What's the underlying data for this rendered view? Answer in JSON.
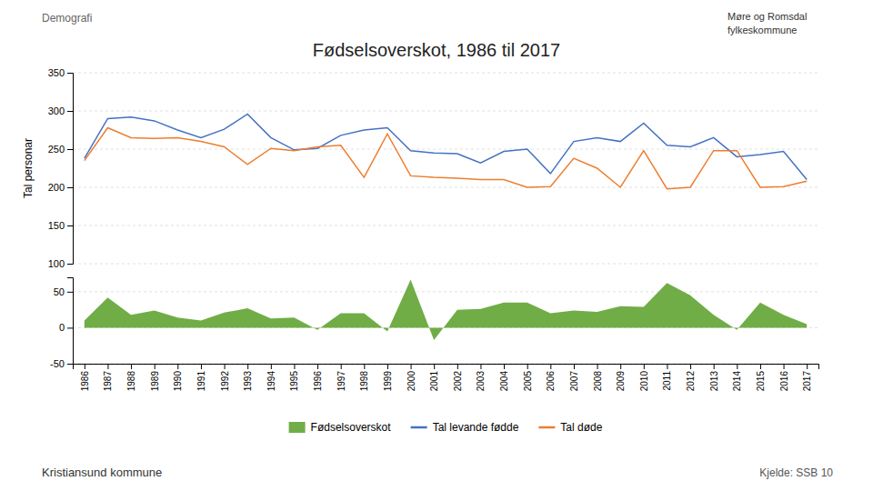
{
  "chart_data": [
    {
      "type": "line",
      "title": "Fødselsoverskot, 1986 til 2017",
      "ylabel": "Tal personar",
      "annotations": [
        "Demografi",
        "Kristiansund kommune",
        "Kjelde: SSB  10",
        "Møre og Romsdal",
        "fylkeskommune"
      ],
      "x": [
        1986,
        1987,
        1988,
        1989,
        1990,
        1991,
        1992,
        1993,
        1994,
        1995,
        1996,
        1997,
        1998,
        1999,
        2000,
        2001,
        2002,
        2003,
        2004,
        2005,
        2006,
        2007,
        2008,
        2009,
        2010,
        2011,
        2012,
        2013,
        2014,
        2015,
        2016,
        2017
      ],
      "xlim": [
        1985.5,
        2017.5
      ],
      "ylim": [
        100,
        350
      ],
      "yticks": [
        100,
        150,
        200,
        250,
        300,
        350
      ],
      "grid": true,
      "tick_labels": "y",
      "series": [
        {
          "name": "Tal levande fødde",
          "color": "#4472c4",
          "values": [
            238,
            290,
            292,
            287,
            275,
            265,
            276,
            296,
            265,
            249,
            251,
            268,
            275,
            278,
            248,
            245,
            244,
            232,
            247,
            250,
            218,
            260,
            265,
            260,
            284,
            255,
            253,
            265,
            240,
            243,
            247,
            210
          ]
        },
        {
          "name": "Tal døde",
          "color": "#ed7d31",
          "values": [
            235,
            278,
            265,
            264,
            265,
            260,
            253,
            230,
            251,
            248,
            253,
            255,
            213,
            270,
            215,
            213,
            212,
            210,
            210,
            200,
            201,
            238,
            225,
            200,
            248,
            198,
            200,
            248,
            248,
            200,
            201,
            208
          ]
        }
      ]
    },
    {
      "type": "area",
      "x": [
        1986,
        1987,
        1988,
        1989,
        1990,
        1991,
        1992,
        1993,
        1994,
        1995,
        1996,
        1997,
        1998,
        1999,
        2000,
        2001,
        2002,
        2003,
        2004,
        2005,
        2006,
        2007,
        2008,
        2009,
        2010,
        2011,
        2012,
        2013,
        2014,
        2015,
        2016,
        2017
      ],
      "xlim": [
        1985.5,
        2017.5
      ],
      "xticks": [
        1986,
        1987,
        1988,
        1989,
        1990,
        1991,
        1992,
        1993,
        1994,
        1995,
        1996,
        1997,
        1998,
        1999,
        2000,
        2001,
        2002,
        2003,
        2004,
        2005,
        2006,
        2007,
        2008,
        2009,
        2010,
        2011,
        2012,
        2013,
        2014,
        2015,
        2016,
        2017
      ],
      "ylim": [
        -50,
        70
      ],
      "yticks": [
        -50,
        0,
        50
      ],
      "grid": true,
      "series": [
        {
          "name": "Fødselsoverskot",
          "color": "#70ad47",
          "values": [
            10,
            42,
            18,
            24,
            14,
            10,
            21,
            27,
            13,
            14,
            -3,
            20,
            20,
            -5,
            67,
            -17,
            25,
            26,
            35,
            35,
            20,
            24,
            22,
            30,
            29,
            62,
            45,
            18,
            -3,
            35,
            18,
            5
          ]
        }
      ]
    }
  ]
}
